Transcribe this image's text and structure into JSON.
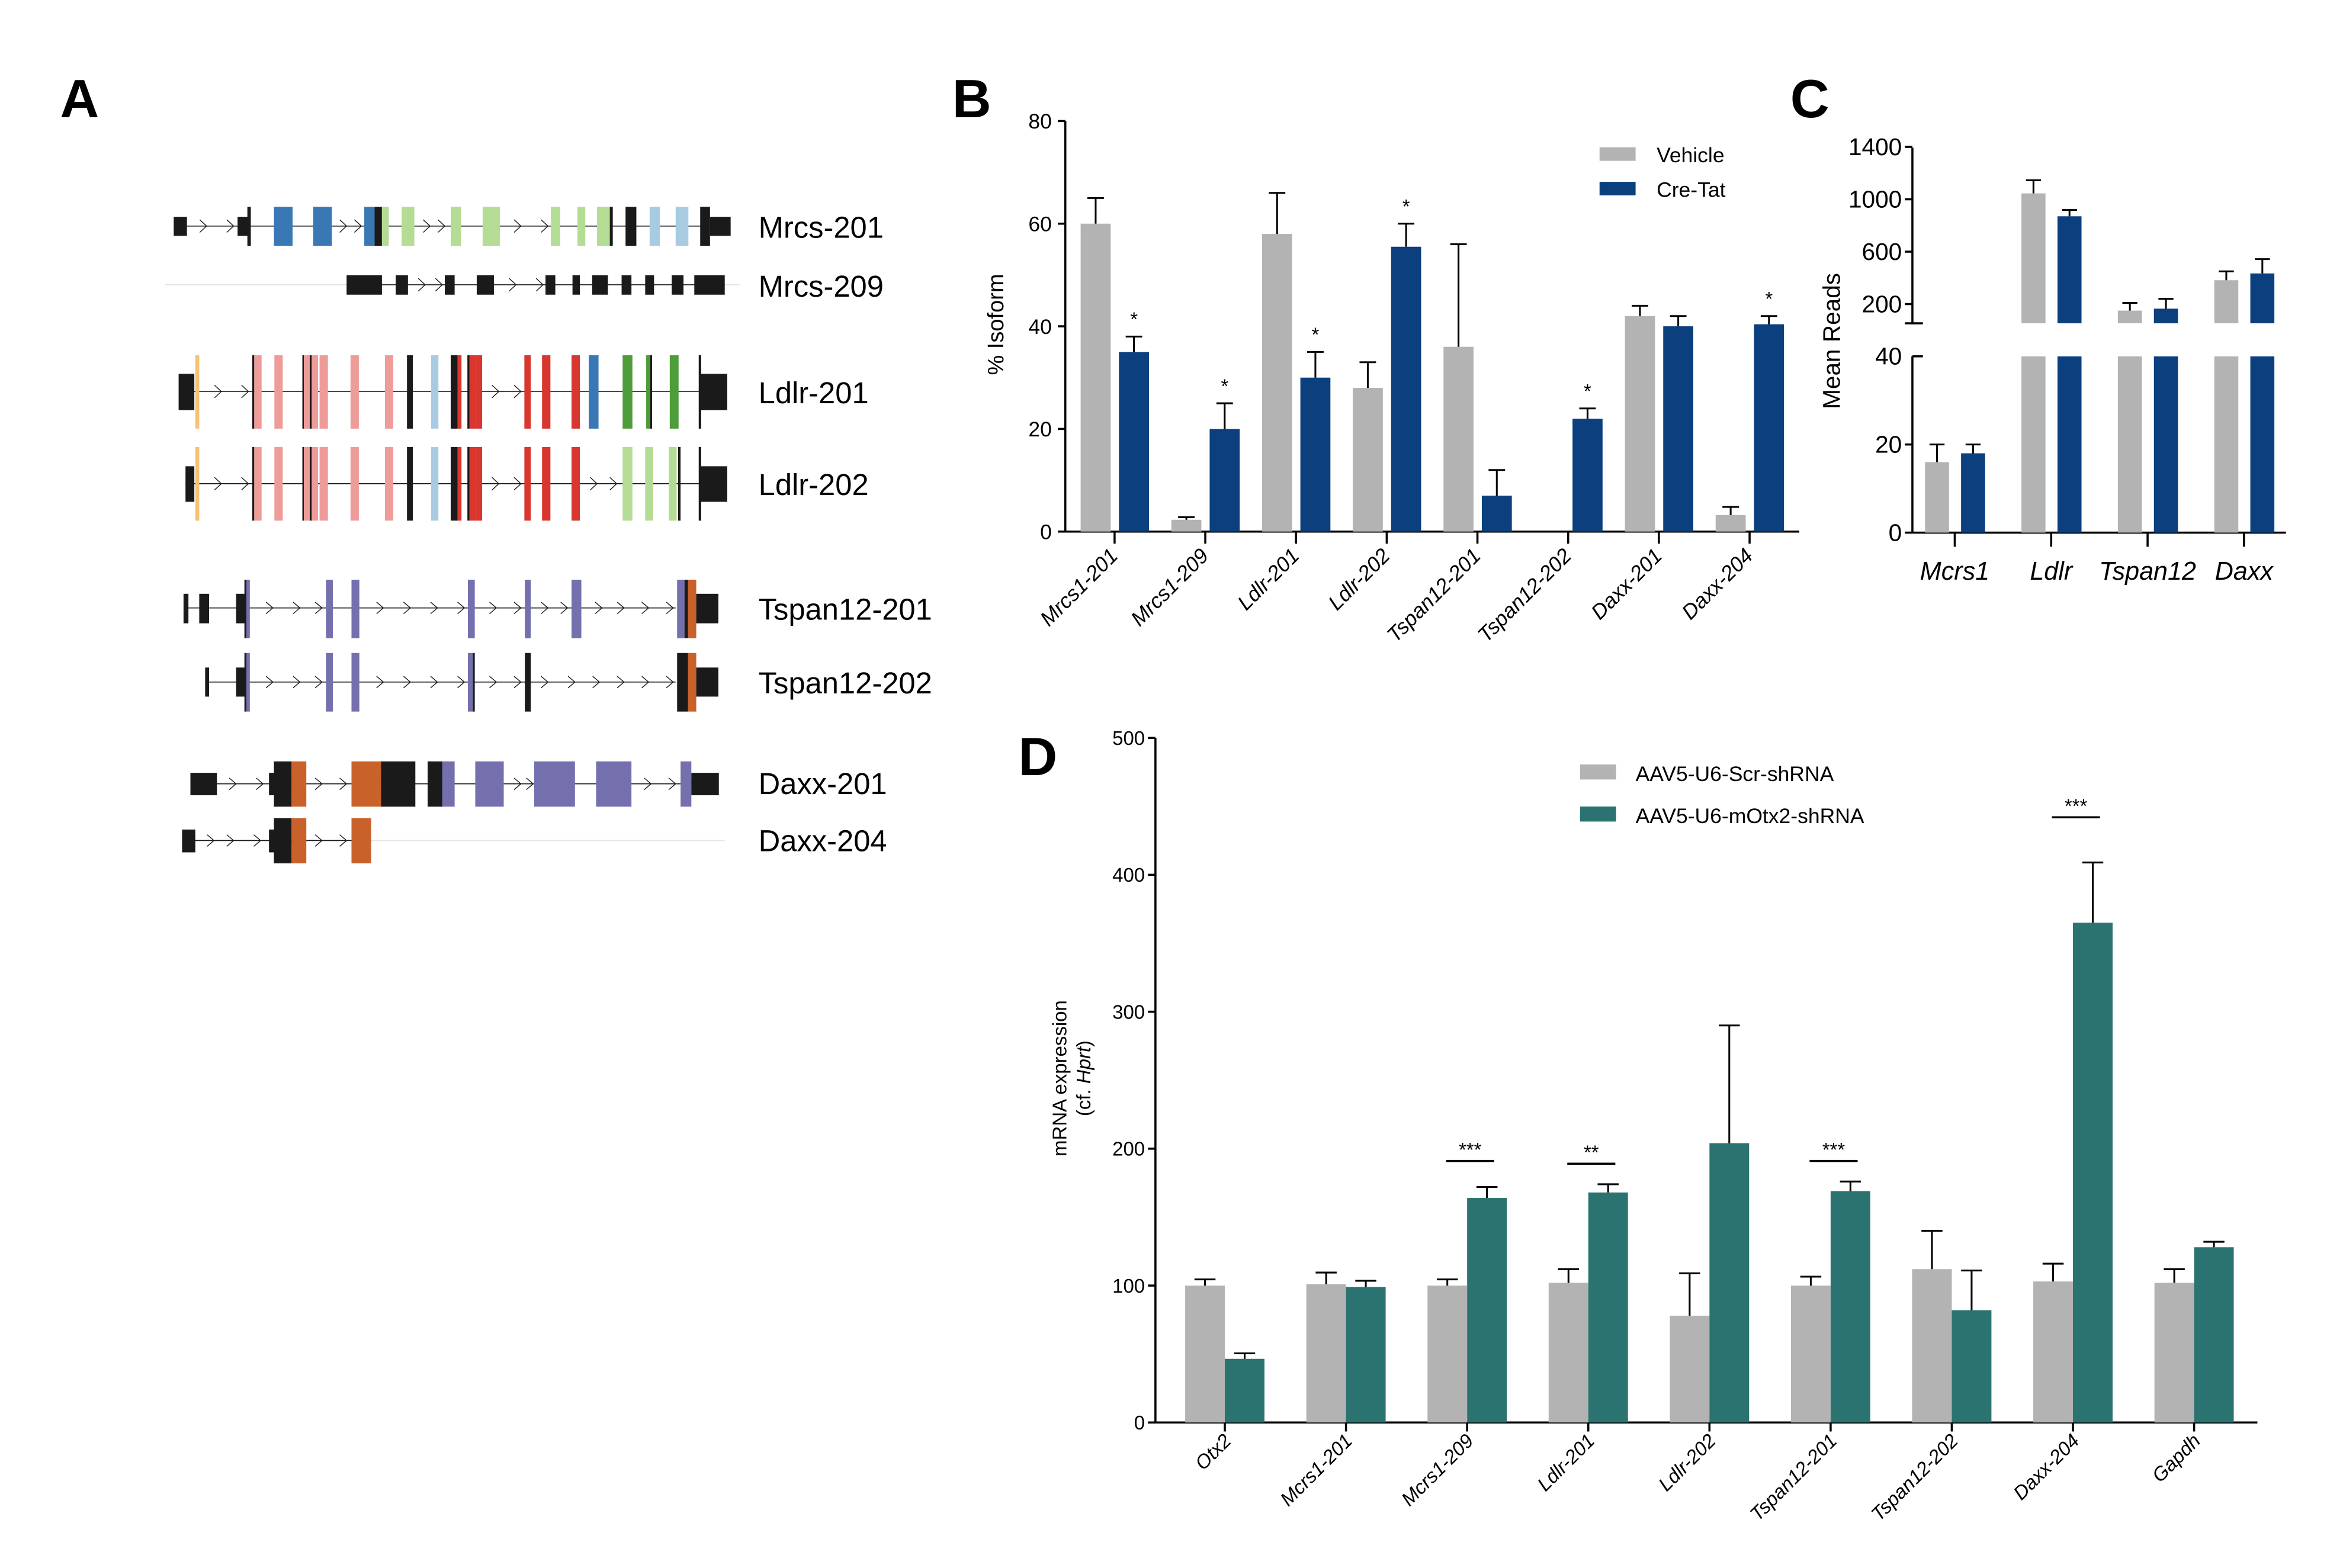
{
  "panel_labels": {
    "a": "A",
    "b": "B",
    "c": "C",
    "d": "D"
  },
  "colors": {
    "vehicle": "#b3b3b3",
    "cre_tat": "#0b3f7d",
    "scr_shrna": "#b3b3b3",
    "otx2_shrna": "#2b7370"
  },
  "panel_a": {
    "transcripts": [
      {
        "label": "Mrcs-201"
      },
      {
        "label": "Mrcs-209"
      },
      {
        "label": "Ldlr-201"
      },
      {
        "label": "Ldlr-202"
      },
      {
        "label": "Tspan12-201"
      },
      {
        "label": "Tspan12-202"
      },
      {
        "label": "Daxx-201"
      },
      {
        "label": "Daxx-204"
      }
    ]
  },
  "chart_data": [
    {
      "panel": "B",
      "type": "bar",
      "title": "",
      "xlabel": "",
      "ylabel": "% Isoform",
      "ylim": [
        0,
        80
      ],
      "yticks": [
        "0",
        "20",
        "40",
        "60",
        "80"
      ],
      "legend_position": "top-right",
      "categories": [
        "Mrcs1-201",
        "Mrcs1-209",
        "Ldlr-201",
        "Ldlr-202",
        "Tspan12-201",
        "Tspan12-202",
        "Daxx-201",
        "Daxx-204"
      ],
      "series": [
        {
          "name": "Vehicle",
          "values": [
            60,
            2.3,
            58,
            28,
            36,
            0,
            42,
            3.2
          ],
          "error_upper": [
            65,
            2.8,
            66,
            33,
            56,
            0,
            44,
            4.8
          ]
        },
        {
          "name": "Cre-Tat",
          "values": [
            35,
            20,
            30,
            55.5,
            7,
            22,
            40,
            40.4
          ],
          "error_upper": [
            38,
            25,
            35,
            60,
            12,
            24,
            42,
            42
          ]
        }
      ],
      "significance": [
        "*",
        "*",
        "*",
        "*",
        "",
        "*",
        "",
        "*"
      ]
    },
    {
      "panel": "C",
      "type": "bar",
      "title": "",
      "xlabel": "",
      "ylabel": "Mean Reads",
      "broken_axis": true,
      "ylim_lower": [
        0,
        40
      ],
      "ylim_upper": [
        50,
        1400
      ],
      "yticks_lower": [
        "0",
        "20",
        "40"
      ],
      "yticks_upper": [
        "200",
        "600",
        "1000",
        "1400"
      ],
      "categories": [
        "Mcrs1",
        "Ldlr",
        "Tspan12",
        "Daxx"
      ],
      "series": [
        {
          "name": "Vehicle",
          "values": [
            16,
            1045,
            150,
            382
          ],
          "error_upper": [
            20,
            1145,
            209,
            450
          ]
        },
        {
          "name": "Cre-Tat",
          "values": [
            18,
            870,
            165,
            434
          ],
          "error_upper": [
            20,
            918,
            240,
            543
          ]
        }
      ]
    },
    {
      "panel": "D",
      "type": "bar",
      "title": "",
      "xlabel": "",
      "ylabel": "mRNA expression",
      "ylabel_line2_prefix": "(cf. ",
      "ylabel_line2_gene": "Hprt",
      "ylabel_line2_suffix": ")",
      "ylim": [
        0,
        500
      ],
      "yticks": [
        "0",
        "100",
        "200",
        "300",
        "400",
        "500"
      ],
      "legend_position": "top-center",
      "categories": [
        "Otx2",
        "Mcrs1-201",
        "Mcrs1-209",
        "Ldlr-201",
        "Ldlr-202",
        "Tspan12-201",
        "Tspan12-202",
        "Daxx-204",
        "Gapdh"
      ],
      "series": [
        {
          "name": "AAV5-U6-Scr-shRNA",
          "values": [
            100,
            101,
            100,
            102,
            78,
            100,
            112,
            103,
            102
          ],
          "error_upper": [
            104.5,
            109.5,
            104.5,
            112,
            109,
            106.5,
            140,
            116,
            112
          ]
        },
        {
          "name": "AAV5-U6-mOtx2-shRNA",
          "values": [
            46.5,
            99,
            164,
            168,
            204,
            169,
            82,
            365,
            128
          ],
          "error_upper": [
            50.5,
            103.5,
            172,
            174,
            290,
            176,
            111,
            409,
            132
          ]
        }
      ],
      "significance": [
        "",
        "",
        "***",
        "**",
        "",
        "***",
        "",
        "***",
        ""
      ],
      "significance_line_level": [
        null,
        null,
        191,
        189,
        null,
        191,
        null,
        442,
        null
      ]
    }
  ]
}
